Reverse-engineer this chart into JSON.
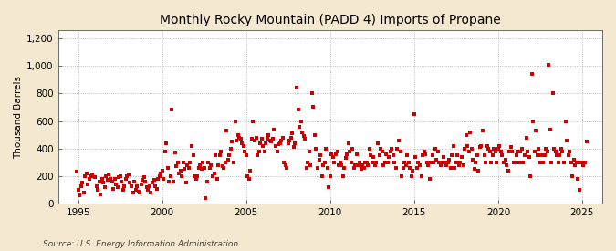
{
  "title": "Monthly Rocky Mountain (PADD 4) Imports of Propane",
  "ylabel": "Thousand Barrels",
  "source": "Source: U.S. Energy Information Administration",
  "fig_bg_color": "#F5E8D0",
  "plot_bg_color": "#FFFFFF",
  "marker_color": "#CC0000",
  "ylim": [
    0,
    1260
  ],
  "yticks": [
    0,
    200,
    400,
    600,
    800,
    1000,
    1200
  ],
  "ytick_labels": [
    "0",
    "200",
    "400",
    "600",
    "800",
    "1,000",
    "1,200"
  ],
  "xlim_start": 1993.8,
  "xlim_end": 2026.2,
  "xticks": [
    1995,
    2000,
    2005,
    2010,
    2015,
    2020,
    2025
  ],
  "data": {
    "dates": [
      1994.917,
      1995.0,
      1995.083,
      1995.167,
      1995.25,
      1995.333,
      1995.417,
      1995.5,
      1995.583,
      1995.667,
      1995.75,
      1995.833,
      1996.0,
      1996.083,
      1996.167,
      1996.25,
      1996.333,
      1996.417,
      1996.5,
      1996.583,
      1996.667,
      1996.75,
      1996.833,
      1996.917,
      1997.0,
      1997.083,
      1997.167,
      1997.25,
      1997.333,
      1997.417,
      1997.5,
      1997.583,
      1997.667,
      1997.75,
      1997.833,
      1997.917,
      1998.0,
      1998.083,
      1998.167,
      1998.25,
      1998.333,
      1998.417,
      1998.5,
      1998.583,
      1998.667,
      1998.75,
      1998.833,
      1998.917,
      1999.0,
      1999.083,
      1999.167,
      1999.25,
      1999.333,
      1999.417,
      1999.5,
      1999.583,
      1999.667,
      1999.75,
      1999.833,
      1999.917,
      2000.0,
      2000.083,
      2000.167,
      2000.25,
      2000.333,
      2000.417,
      2000.5,
      2000.583,
      2000.667,
      2000.75,
      2000.833,
      2000.917,
      2001.0,
      2001.083,
      2001.167,
      2001.25,
      2001.333,
      2001.417,
      2001.5,
      2001.583,
      2001.667,
      2001.75,
      2001.833,
      2001.917,
      2002.0,
      2002.083,
      2002.167,
      2002.25,
      2002.333,
      2002.417,
      2002.5,
      2002.583,
      2002.667,
      2002.75,
      2002.833,
      2002.917,
      2003.0,
      2003.083,
      2003.167,
      2003.25,
      2003.333,
      2003.417,
      2003.5,
      2003.583,
      2003.667,
      2003.75,
      2003.833,
      2003.917,
      2004.0,
      2004.083,
      2004.167,
      2004.25,
      2004.333,
      2004.417,
      2004.5,
      2004.583,
      2004.667,
      2004.75,
      2004.833,
      2004.917,
      2005.0,
      2005.083,
      2005.167,
      2005.25,
      2005.333,
      2005.417,
      2005.5,
      2005.583,
      2005.667,
      2005.75,
      2005.833,
      2005.917,
      2006.0,
      2006.083,
      2006.167,
      2006.25,
      2006.333,
      2006.417,
      2006.5,
      2006.583,
      2006.667,
      2006.75,
      2006.833,
      2006.917,
      2007.0,
      2007.083,
      2007.167,
      2007.25,
      2007.333,
      2007.417,
      2007.5,
      2007.583,
      2007.667,
      2007.75,
      2007.833,
      2007.917,
      2008.0,
      2008.083,
      2008.167,
      2008.25,
      2008.333,
      2008.417,
      2008.5,
      2008.583,
      2008.667,
      2008.75,
      2008.833,
      2008.917,
      2009.0,
      2009.083,
      2009.167,
      2009.25,
      2009.333,
      2009.417,
      2009.5,
      2009.583,
      2009.667,
      2009.75,
      2009.833,
      2009.917,
      2010.0,
      2010.083,
      2010.167,
      2010.25,
      2010.333,
      2010.417,
      2010.5,
      2010.583,
      2010.667,
      2010.75,
      2010.833,
      2010.917,
      2011.0,
      2011.083,
      2011.167,
      2011.25,
      2011.333,
      2011.417,
      2011.5,
      2011.583,
      2011.667,
      2011.75,
      2011.833,
      2011.917,
      2012.0,
      2012.083,
      2012.167,
      2012.25,
      2012.333,
      2012.417,
      2012.5,
      2012.583,
      2012.667,
      2012.75,
      2012.833,
      2012.917,
      2013.0,
      2013.083,
      2013.167,
      2013.25,
      2013.333,
      2013.417,
      2013.5,
      2013.583,
      2013.667,
      2013.75,
      2013.833,
      2013.917,
      2014.0,
      2014.083,
      2014.167,
      2014.25,
      2014.333,
      2014.417,
      2014.5,
      2014.583,
      2014.667,
      2014.75,
      2014.833,
      2014.917,
      2015.0,
      2015.083,
      2015.167,
      2015.25,
      2015.333,
      2015.417,
      2015.5,
      2015.583,
      2015.667,
      2015.75,
      2015.833,
      2015.917,
      2016.0,
      2016.083,
      2016.167,
      2016.25,
      2016.333,
      2016.417,
      2016.5,
      2016.583,
      2016.667,
      2016.75,
      2016.833,
      2016.917,
      2017.0,
      2017.083,
      2017.167,
      2017.25,
      2017.333,
      2017.417,
      2017.5,
      2017.583,
      2017.667,
      2017.75,
      2017.833,
      2017.917,
      2018.0,
      2018.083,
      2018.167,
      2018.25,
      2018.333,
      2018.417,
      2018.5,
      2018.583,
      2018.667,
      2018.75,
      2018.833,
      2018.917,
      2019.0,
      2019.083,
      2019.167,
      2019.25,
      2019.333,
      2019.417,
      2019.5,
      2019.583,
      2019.667,
      2019.75,
      2019.833,
      2019.917,
      2020.0,
      2020.083,
      2020.167,
      2020.25,
      2020.333,
      2020.417,
      2020.5,
      2020.583,
      2020.667,
      2020.75,
      2020.833,
      2020.917,
      2021.0,
      2021.083,
      2021.167,
      2021.25,
      2021.333,
      2021.417,
      2021.5,
      2021.583,
      2021.667,
      2021.75,
      2021.833,
      2021.917,
      2022.0,
      2022.083,
      2022.167,
      2022.25,
      2022.333,
      2022.417,
      2022.5,
      2022.583,
      2022.667,
      2022.75,
      2022.833,
      2022.917,
      2023.0,
      2023.083,
      2023.167,
      2023.25,
      2023.333,
      2023.417,
      2023.5,
      2023.583,
      2023.667,
      2023.75,
      2023.833,
      2023.917,
      2024.0,
      2024.083,
      2024.167,
      2024.25,
      2024.333,
      2024.417,
      2024.5,
      2024.583,
      2024.667,
      2024.75,
      2024.833,
      2024.917,
      2025.0,
      2025.083,
      2025.167,
      2025.25
    ],
    "values": [
      230,
      100,
      60,
      130,
      150,
      80,
      200,
      220,
      140,
      180,
      200,
      210,
      190,
      130,
      100,
      160,
      70,
      180,
      150,
      120,
      200,
      170,
      210,
      180,
      160,
      110,
      180,
      140,
      120,
      190,
      200,
      160,
      100,
      130,
      180,
      200,
      210,
      150,
      130,
      80,
      160,
      100,
      130,
      90,
      80,
      140,
      170,
      190,
      160,
      120,
      100,
      130,
      80,
      150,
      170,
      130,
      110,
      180,
      200,
      220,
      240,
      180,
      380,
      440,
      260,
      160,
      200,
      680,
      160,
      370,
      270,
      300,
      220,
      240,
      200,
      300,
      250,
      150,
      280,
      260,
      300,
      420,
      350,
      200,
      180,
      200,
      260,
      280,
      250,
      300,
      260,
      40,
      160,
      300,
      260,
      280,
      200,
      220,
      350,
      180,
      280,
      350,
      380,
      270,
      260,
      300,
      530,
      320,
      350,
      400,
      450,
      300,
      600,
      460,
      500,
      480,
      470,
      440,
      420,
      380,
      350,
      200,
      180,
      240,
      470,
      600,
      460,
      480,
      350,
      380,
      440,
      470,
      420,
      380,
      440,
      470,
      500,
      460,
      450,
      470,
      540,
      420,
      380,
      430,
      440,
      460,
      480,
      300,
      280,
      260,
      440,
      460,
      480,
      510,
      410,
      440,
      840,
      680,
      560,
      600,
      520,
      490,
      470,
      260,
      300,
      380,
      280,
      800,
      700,
      500,
      400,
      260,
      320,
      350,
      200,
      280,
      300,
      400,
      260,
      120,
      200,
      360,
      340,
      300,
      360,
      380,
      280,
      300,
      280,
      200,
      260,
      330,
      360,
      440,
      380,
      300,
      400,
      260,
      280,
      360,
      280,
      300,
      250,
      280,
      260,
      300,
      300,
      280,
      400,
      350,
      300,
      340,
      280,
      300,
      440,
      350,
      400,
      380,
      280,
      300,
      360,
      300,
      340,
      380,
      400,
      350,
      300,
      260,
      400,
      460,
      380,
      200,
      260,
      300,
      280,
      350,
      300,
      260,
      200,
      240,
      650,
      340,
      260,
      300,
      280,
      200,
      350,
      380,
      360,
      300,
      280,
      180,
      300,
      350,
      300,
      400,
      320,
      380,
      300,
      280,
      300,
      340,
      300,
      280,
      300,
      320,
      260,
      350,
      420,
      260,
      300,
      350,
      280,
      300,
      340,
      280,
      400,
      500,
      420,
      380,
      520,
      400,
      320,
      250,
      300,
      350,
      240,
      410,
      420,
      530,
      350,
      300,
      420,
      400,
      380,
      300,
      350,
      400,
      380,
      300,
      400,
      420,
      380,
      350,
      300,
      320,
      280,
      240,
      380,
      410,
      380,
      300,
      300,
      350,
      380,
      300,
      380,
      400,
      300,
      350,
      480,
      380,
      340,
      200,
      940,
      600,
      380,
      530,
      350,
      400,
      300,
      350,
      300,
      350,
      400,
      380,
      1010,
      540,
      300,
      800,
      400,
      380,
      350,
      300,
      350,
      400,
      380,
      300,
      600,
      460,
      350,
      380,
      300,
      200,
      320,
      280,
      300,
      180,
      100,
      300,
      300,
      280,
      300,
      450
    ]
  }
}
